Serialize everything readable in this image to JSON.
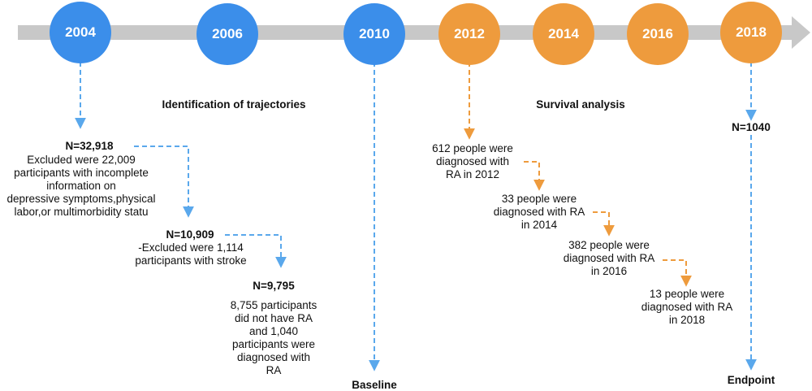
{
  "colors": {
    "blue": "#3b8eea",
    "orange": "#ee9b3d",
    "arrow_bar": "#c8c8c8",
    "blue_arrow": "#5aa8ec",
    "orange_arrow": "#ee9b3d"
  },
  "timeline": {
    "years": [
      {
        "label": "2004",
        "color": "blue"
      },
      {
        "label": "2006",
        "color": "blue"
      },
      {
        "label": "2010",
        "color": "blue"
      },
      {
        "label": "2012",
        "color": "orange"
      },
      {
        "label": "2014",
        "color": "orange"
      },
      {
        "label": "2016",
        "color": "orange"
      },
      {
        "label": "2018",
        "color": "orange"
      }
    ]
  },
  "sections": {
    "identification": "Identification of trajectories",
    "survival": "Survival analysis",
    "baseline": "Baseline",
    "endpoint": "Endpoint"
  },
  "left_flow": {
    "n1": "N=32,918",
    "excl1": [
      "Excluded were 22,009",
      "participants with incomplete",
      "information on",
      "depressive symptoms,physical",
      "labor,or multimorbidity statu"
    ],
    "n2": "N=10,909",
    "excl2": [
      "-Excluded were 1,114",
      "participants with stroke"
    ],
    "n3": "N=9,795",
    "result": [
      "8,755 participants",
      "did not have RA",
      "and 1,040",
      "participants were",
      "diagnosed with",
      "RA"
    ]
  },
  "right_flow": {
    "s2012": [
      "612 people were",
      "diagnosed with",
      "RA in 2012"
    ],
    "s2014": [
      "33 people were",
      "diagnosed with RA",
      "in 2014"
    ],
    "s2016": [
      "382 people were",
      "diagnosed with RA",
      "in 2016"
    ],
    "s2018": [
      "13 people were",
      "diagnosed with RA",
      "in 2018"
    ]
  },
  "endpoint_n": "N=1040"
}
